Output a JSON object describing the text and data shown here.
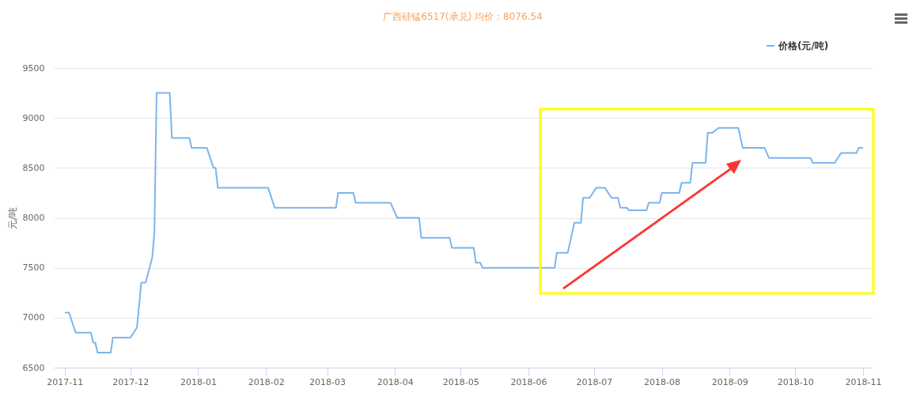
{
  "chart_data": {
    "type": "line",
    "title": "广西硅锰6517(承兑) 均价：8076.54",
    "ylabel": "元/吨",
    "x": [
      "2017-11-01",
      "2017-11-03",
      "2017-11-06",
      "2017-11-13",
      "2017-11-14",
      "2017-11-15",
      "2017-11-16",
      "2017-11-22",
      "2017-11-23",
      "2017-12-01",
      "2017-12-04",
      "2017-12-06",
      "2017-12-08",
      "2017-12-11",
      "2017-12-12",
      "2017-12-13",
      "2017-12-19",
      "2017-12-20",
      "2017-12-28",
      "2017-12-29",
      "2018-01-05",
      "2018-01-08",
      "2018-01-09",
      "2018-01-10",
      "2018-02-02",
      "2018-02-05",
      "2018-03-05",
      "2018-03-06",
      "2018-03-13",
      "2018-03-14",
      "2018-03-30",
      "2018-04-02",
      "2018-04-12",
      "2018-04-13",
      "2018-04-26",
      "2018-04-27",
      "2018-05-07",
      "2018-05-08",
      "2018-05-10",
      "2018-05-11",
      "2018-06-13",
      "2018-06-14",
      "2018-06-19",
      "2018-06-20",
      "2018-06-22",
      "2018-06-25",
      "2018-06-26",
      "2018-06-29",
      "2018-07-02",
      "2018-07-06",
      "2018-07-09",
      "2018-07-12",
      "2018-07-13",
      "2018-07-16",
      "2018-07-17",
      "2018-07-25",
      "2018-07-26",
      "2018-07-31",
      "2018-08-01",
      "2018-08-09",
      "2018-08-10",
      "2018-08-14",
      "2018-08-15",
      "2018-08-21",
      "2018-08-22",
      "2018-08-24",
      "2018-08-27",
      "2018-09-05",
      "2018-09-07",
      "2018-09-17",
      "2018-09-19",
      "2018-10-08",
      "2018-10-09",
      "2018-10-19",
      "2018-10-22",
      "2018-10-29",
      "2018-10-30",
      "2018-11-01"
    ],
    "series": [
      {
        "name": "价格(元/吨)",
        "color": "#7cb5ec",
        "values": [
          7050,
          7050,
          6850,
          6850,
          6750,
          6750,
          6650,
          6650,
          6800,
          6800,
          6900,
          7350,
          7350,
          7600,
          7850,
          9250,
          9250,
          8800,
          8800,
          8700,
          8700,
          8500,
          8500,
          8300,
          8300,
          8100,
          8100,
          8250,
          8250,
          8150,
          8150,
          8000,
          8000,
          7800,
          7800,
          7700,
          7700,
          7550,
          7550,
          7500,
          7500,
          7650,
          7650,
          7750,
          7950,
          7950,
          8200,
          8200,
          8300,
          8300,
          8200,
          8200,
          8100,
          8100,
          8075,
          8075,
          8150,
          8150,
          8250,
          8250,
          8350,
          8350,
          8550,
          8550,
          8850,
          8850,
          8900,
          8900,
          8700,
          8700,
          8600,
          8600,
          8550,
          8550,
          8650,
          8650,
          8700,
          8700
        ]
      }
    ],
    "xlim": [
      "2017-10-27",
      "2018-11-05"
    ],
    "xticks": [
      "2017-11",
      "2017-12",
      "2018-01",
      "2018-02",
      "2018-03",
      "2018-04",
      "2018-05",
      "2018-06",
      "2018-07",
      "2018-08",
      "2018-09",
      "2018-10",
      "2018-11"
    ],
    "ylim": [
      6500,
      9500
    ],
    "yticks": [
      6500,
      7000,
      7500,
      8000,
      8500,
      9000,
      9500
    ],
    "grid": "y",
    "legend": "top right"
  }
}
